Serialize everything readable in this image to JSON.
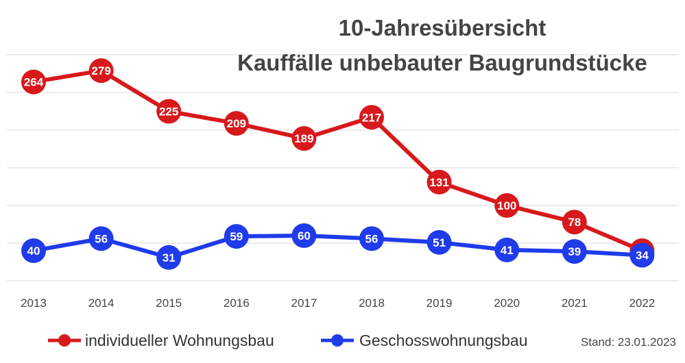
{
  "chart_data": {
    "type": "line",
    "title": "10-Jahresübersicht",
    "subtitle": "Kauffälle unbebauter Baugrundstücke",
    "x": [
      "2013",
      "2014",
      "2015",
      "2016",
      "2017",
      "2018",
      "2019",
      "2020",
      "2021",
      "2022"
    ],
    "series": [
      {
        "name": "individueller Wohnungsbau",
        "color": "#d7191c",
        "values": [
          264,
          279,
          225,
          209,
          189,
          217,
          131,
          100,
          78,
          40
        ]
      },
      {
        "name": "Geschosswohnungsbau",
        "color": "#1f3bea",
        "values": [
          40,
          56,
          31,
          59,
          60,
          56,
          51,
          41,
          39,
          34
        ]
      }
    ],
    "ylim": [
      0,
      300
    ],
    "grid": true,
    "legend_position": "bottom",
    "note": "Stand: 23.01.2023"
  }
}
